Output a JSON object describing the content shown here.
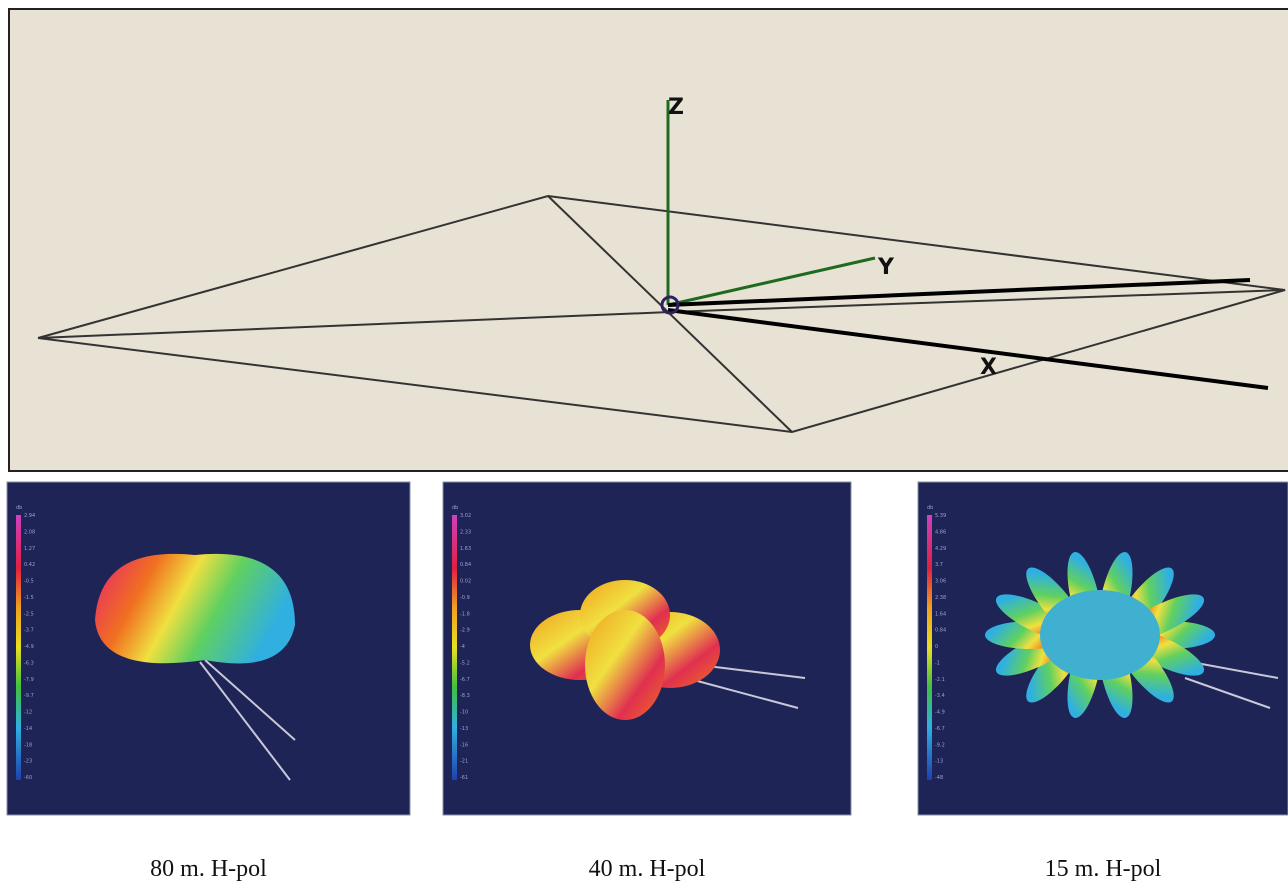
{
  "top": {
    "axes": {
      "z": "Z",
      "y": "Y",
      "x": "X"
    }
  },
  "panels": [
    {
      "caption": "80 m. H-pol",
      "colorbar": {
        "unit": "db",
        "labels": [
          "2.94",
          "2.08",
          "1.27",
          "0.42",
          "-0.5",
          "-1.5",
          "-2.5",
          "-3.7",
          "-4.9",
          "-6.3",
          "-7.9",
          "-9.7",
          "-12",
          "-14",
          "-18",
          "-23",
          "-60"
        ]
      }
    },
    {
      "caption": "40 m. H-pol",
      "colorbar": {
        "unit": "db",
        "labels": [
          "3.02",
          "2.33",
          "1.63",
          "0.84",
          "0.02",
          "-0.9",
          "-1.8",
          "-2.9",
          "-4",
          "-5.2",
          "-6.7",
          "-8.3",
          "-10",
          "-13",
          "-16",
          "-21",
          "-61"
        ]
      }
    },
    {
      "caption": "15 m. H-pol",
      "colorbar": {
        "unit": "db",
        "labels": [
          "5.39",
          "4.86",
          "4.29",
          "3.7",
          "3.06",
          "2.38",
          "1.64",
          "0.84",
          "0",
          "-1",
          "-2.1",
          "-3.4",
          "-4.9",
          "-6.7",
          "-9.2",
          "-13",
          "-48"
        ]
      }
    }
  ]
}
